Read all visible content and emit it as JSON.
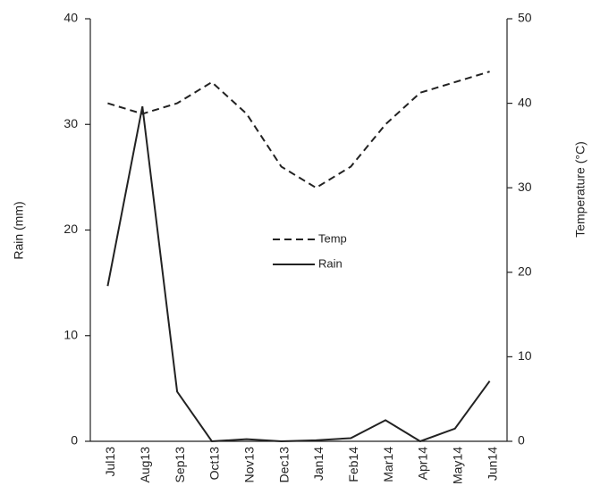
{
  "chart_data": {
    "type": "line",
    "categories": [
      "Jul13",
      "Aug13",
      "Sep13",
      "Oct13",
      "Nov13",
      "Dec13",
      "Jan14",
      "Feb14",
      "Mar14",
      "Apr14",
      "May14",
      "Jun14"
    ],
    "y_label": "Rain (mm)",
    "y2_label": "Temperature (°C)",
    "ylim": [
      0,
      40
    ],
    "yticks": [
      0,
      10,
      20,
      30,
      40
    ],
    "y2lim": [
      0,
      50
    ],
    "y2ticks": [
      0,
      10,
      20,
      30,
      40,
      50
    ],
    "series": [
      {
        "name": "Temp",
        "color": "#222222",
        "dash": true,
        "axis": "y2",
        "values": [
          40,
          38.75,
          40,
          42.5,
          38.75,
          32.5,
          30,
          32.5,
          37.5,
          41.25,
          42.5,
          43.75
        ]
      },
      {
        "name": "Rain",
        "color": "#222222",
        "dash": false,
        "values": [
          14.7,
          31.7,
          4.7,
          0,
          0.2,
          0,
          0.1,
          0.3,
          2.0,
          0,
          1.2,
          5.7
        ]
      }
    ]
  }
}
